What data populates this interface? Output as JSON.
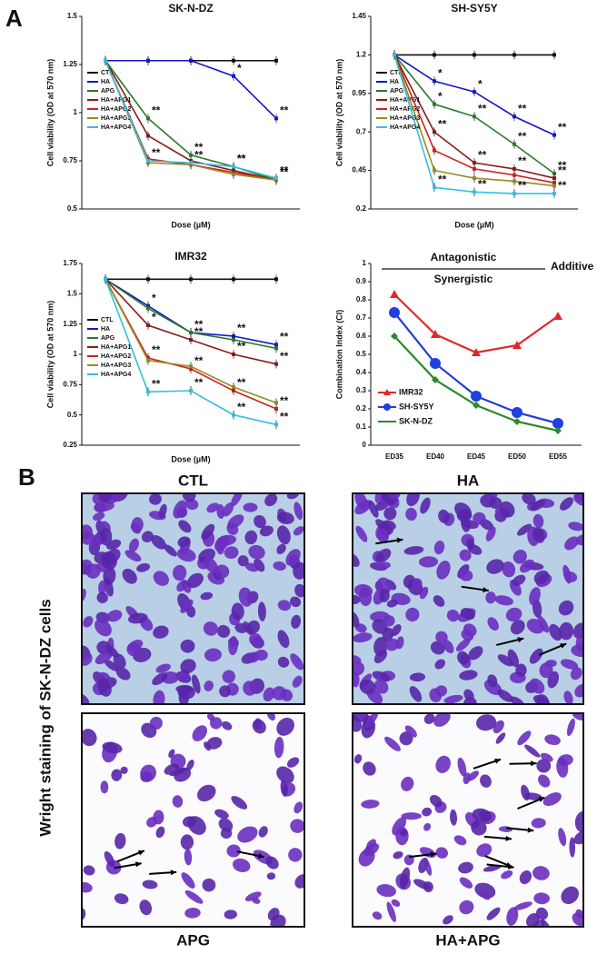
{
  "figure": {
    "panel_a": {
      "label": "A"
    },
    "panel_b": {
      "label": "B",
      "y_label": "Wright staining of SK-N-DZ cells",
      "images": [
        "CTL",
        "HA",
        "APG",
        "HA+APG"
      ]
    }
  },
  "chart_data": [
    {
      "type": "line",
      "title": "SK-N-DZ",
      "y_label": "Cell viability (OD at 570 nm)",
      "x_label": "Dose (µM)",
      "categories": [
        null,
        null,
        null,
        null,
        null
      ],
      "ylim": [
        0.5,
        1.5
      ],
      "yticks": [
        0.5,
        0.75,
        1,
        1.25,
        1.5
      ],
      "legend": "left",
      "series": [
        {
          "name": "CTL",
          "color": "#111111",
          "values": [
            1.27,
            1.27,
            1.27,
            1.27,
            1.27
          ]
        },
        {
          "name": "HA",
          "color": "#1515c8",
          "values": [
            1.27,
            1.27,
            1.27,
            1.19,
            0.97
          ],
          "annotations": [
            null,
            null,
            null,
            "*",
            "**"
          ]
        },
        {
          "name": "APG",
          "color": "#2a7a2a",
          "values": [
            1.27,
            0.97,
            0.78,
            0.72,
            0.65
          ],
          "annotations": [
            null,
            "**",
            "**",
            "**",
            "**"
          ]
        },
        {
          "name": "HA+APG1",
          "color": "#8b1a1a",
          "values": [
            1.27,
            0.88,
            0.75,
            0.7,
            0.65
          ]
        },
        {
          "name": "HA+APG2",
          "color": "#d02020",
          "values": [
            1.27,
            0.76,
            0.73,
            0.69,
            0.65
          ]
        },
        {
          "name": "HA+APG3",
          "color": "#9a8a20",
          "values": [
            1.27,
            0.74,
            0.73,
            0.68,
            0.65
          ]
        },
        {
          "name": "HA+APG4",
          "color": "#30c0e0",
          "values": [
            1.27,
            0.75,
            0.74,
            0.72,
            0.66
          ],
          "annotations": [
            null,
            "**",
            "**",
            "**",
            "**"
          ]
        }
      ]
    },
    {
      "type": "line",
      "title": "SH-SY5Y",
      "y_label": "Cell viability (OD at 570 nm)",
      "x_label": "Dose (µM)",
      "categories": [
        null,
        null,
        null,
        null,
        null
      ],
      "ylim": [
        0.2,
        1.45
      ],
      "yticks": [
        0.2,
        0.45,
        0.7,
        0.95,
        1.2,
        1.45
      ],
      "legend": "left",
      "series": [
        {
          "name": "CTL",
          "color": "#111111",
          "values": [
            1.2,
            1.2,
            1.2,
            1.2,
            1.2
          ]
        },
        {
          "name": "HA",
          "color": "#1515c8",
          "values": [
            1.2,
            1.03,
            0.96,
            0.8,
            0.68
          ],
          "annotations": [
            null,
            "*",
            "*",
            "**",
            "**"
          ]
        },
        {
          "name": "APG",
          "color": "#2a7a2a",
          "values": [
            1.2,
            0.88,
            0.8,
            0.62,
            0.43
          ],
          "annotations": [
            null,
            "*",
            "**",
            "**",
            "**"
          ]
        },
        {
          "name": "HA+APG1",
          "color": "#8b1a1a",
          "values": [
            1.2,
            0.7,
            0.5,
            0.46,
            0.4
          ],
          "annotations": [
            null,
            "**",
            "**",
            "**",
            "**"
          ]
        },
        {
          "name": "HA+APG2",
          "color": "#d02020",
          "values": [
            1.2,
            0.58,
            0.46,
            0.42,
            0.37
          ]
        },
        {
          "name": "HA+APG3",
          "color": "#9a8a20",
          "values": [
            1.2,
            0.45,
            0.4,
            0.38,
            0.35
          ]
        },
        {
          "name": "HA+APG4",
          "color": "#30c0e0",
          "values": [
            1.2,
            0.34,
            0.31,
            0.3,
            0.3
          ],
          "annotations": [
            null,
            "**",
            "**",
            "**",
            "**"
          ]
        }
      ]
    },
    {
      "type": "line",
      "title": "IMR32",
      "y_label": "Cell viability (OD at 570 nm)",
      "x_label": "Dose (µM)",
      "categories": [
        null,
        null,
        null,
        null,
        null
      ],
      "ylim": [
        0.25,
        1.75
      ],
      "yticks": [
        0.25,
        0.5,
        0.75,
        1,
        1.25,
        1.5,
        1.75
      ],
      "legend": "left",
      "series": [
        {
          "name": "CTL",
          "color": "#111111",
          "values": [
            1.62,
            1.62,
            1.62,
            1.62,
            1.62
          ]
        },
        {
          "name": "HA",
          "color": "#1515c8",
          "values": [
            1.62,
            1.4,
            1.18,
            1.15,
            1.08
          ],
          "annotations": [
            null,
            "*",
            "**",
            "**",
            "**"
          ]
        },
        {
          "name": "APG",
          "color": "#2a7a2a",
          "values": [
            1.62,
            1.38,
            1.18,
            1.12,
            1.05
          ]
        },
        {
          "name": "HA+APG1",
          "color": "#8b1a1a",
          "values": [
            1.62,
            1.24,
            1.12,
            1.0,
            0.92
          ],
          "annotations": [
            null,
            "*",
            "**",
            "**",
            "**"
          ]
        },
        {
          "name": "HA+APG2",
          "color": "#d02020",
          "values": [
            1.62,
            0.97,
            0.88,
            0.7,
            0.55
          ],
          "annotations": [
            null,
            "**",
            "**",
            "**",
            "**"
          ]
        },
        {
          "name": "HA+APG3",
          "color": "#9a8a20",
          "values": [
            1.62,
            0.95,
            0.9,
            0.73,
            0.6
          ]
        },
        {
          "name": "HA+APG4",
          "color": "#30c0e0",
          "values": [
            1.62,
            0.69,
            0.7,
            0.5,
            0.42
          ],
          "annotations": [
            null,
            "**",
            "**",
            "**",
            "**"
          ]
        }
      ]
    },
    {
      "type": "line",
      "y_label": "Combination Index (CI)",
      "labels": {
        "top": "Antagonistic",
        "middle": "Synergistic",
        "right": "Additive"
      },
      "categories": [
        "ED35",
        "ED40",
        "ED45",
        "ED50",
        "ED55"
      ],
      "ylim": [
        0,
        1
      ],
      "yticks": [
        0,
        0.1,
        0.2,
        0.3,
        0.4,
        0.5,
        0.6,
        0.7,
        0.8,
        0.9,
        1
      ],
      "legend": "lower left",
      "series": [
        {
          "name": "IMR32",
          "color": "#e02828",
          "marker": "triangle",
          "values": [
            0.83,
            0.61,
            0.51,
            0.55,
            0.71
          ]
        },
        {
          "name": "SH-SY5Y",
          "color": "#1f3fe0",
          "marker": "circle",
          "values": [
            0.73,
            0.45,
            0.27,
            0.18,
            0.12
          ]
        },
        {
          "name": "SK-N-DZ",
          "color": "#2a8a2a",
          "marker": "diamond",
          "values": [
            0.6,
            0.36,
            0.22,
            0.13,
            0.08
          ]
        }
      ]
    }
  ]
}
